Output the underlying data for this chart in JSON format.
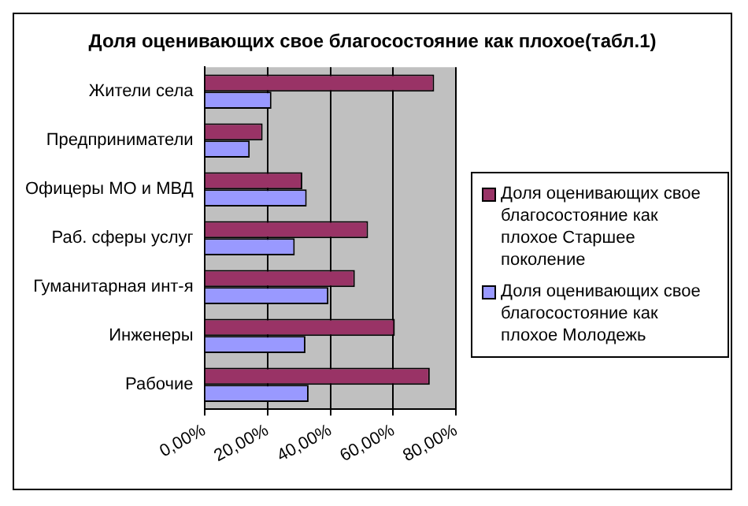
{
  "chart_data": {
    "type": "bar",
    "orientation": "horizontal",
    "title": "Доля оценивающих свое благосостояние как плохое(табл.1)",
    "categories": [
      "Жители села",
      "Предприниматели",
      "Офицеры МО и МВД",
      "Раб. сферы услуг",
      "Гуманитарная инт-я",
      "Инженеры",
      "Рабочие"
    ],
    "series": [
      {
        "name": "Доля оценивающих свое благосостояние как плохое Старшее поколение",
        "color": "#993366",
        "values": [
          73.0,
          18.5,
          31.1,
          52.0,
          47.8,
          60.5,
          71.6
        ]
      },
      {
        "name": "Доля оценивающих свое благосостояние как плохое Молодежь",
        "color": "#9999ff",
        "values": [
          21.3,
          14.4,
          32.5,
          28.7,
          39.4,
          32.1,
          33.1
        ]
      }
    ],
    "xlim": [
      0,
      80
    ],
    "xticks": [
      {
        "value": 0,
        "label": "0,00%"
      },
      {
        "value": 20,
        "label": "20,00%"
      },
      {
        "value": 40,
        "label": "40,00%"
      },
      {
        "value": 60,
        "label": "60,00%"
      },
      {
        "value": 80,
        "label": "80,00%"
      }
    ],
    "grid": "x",
    "legend": "right"
  }
}
